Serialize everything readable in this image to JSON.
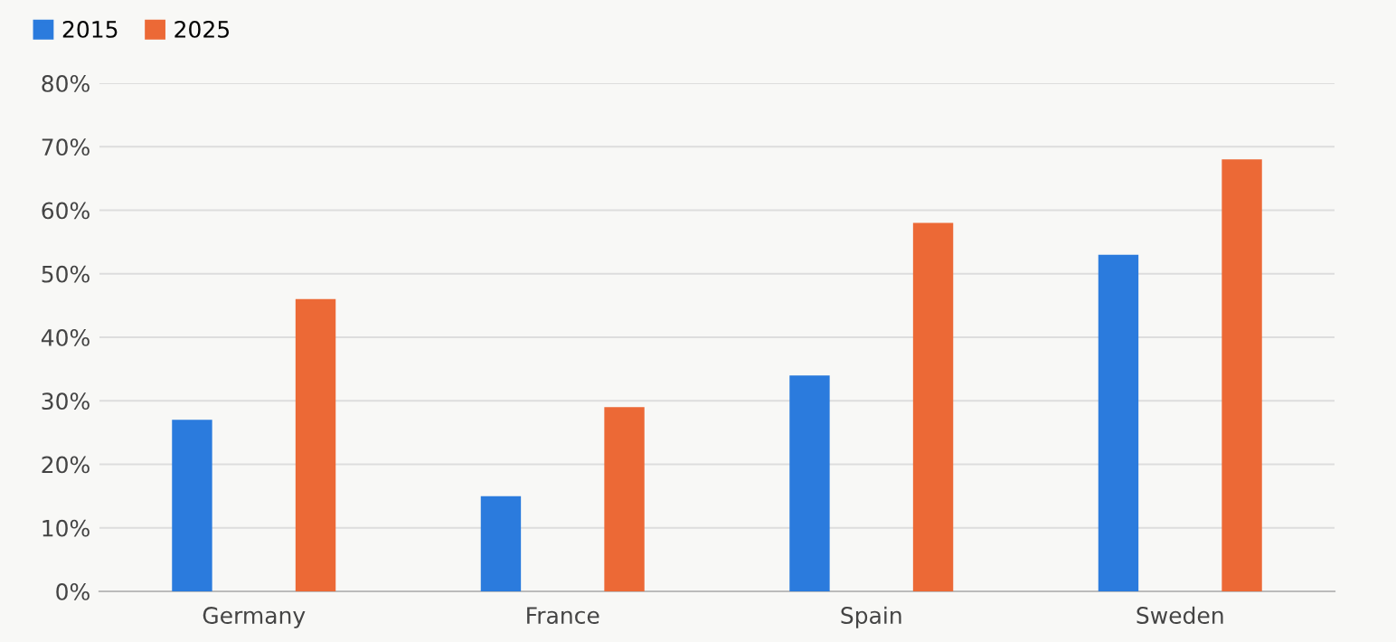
{
  "chart_data": {
    "type": "bar",
    "categories": [
      "Germany",
      "France",
      "Spain",
      "Sweden"
    ],
    "series": [
      {
        "name": "2015",
        "color": "#2b7bdd",
        "values": [
          27,
          15,
          34,
          53
        ]
      },
      {
        "name": "2025",
        "color": "#ec6936",
        "values": [
          46,
          29,
          58,
          68
        ]
      }
    ],
    "ylim": [
      0,
      80
    ],
    "yticks": [
      {
        "value": 0,
        "label": "0%"
      },
      {
        "value": 10,
        "label": "10%"
      },
      {
        "value": 20,
        "label": "20%"
      },
      {
        "value": 30,
        "label": "30%"
      },
      {
        "value": 40,
        "label": "40%"
      },
      {
        "value": 50,
        "label": "50%"
      },
      {
        "value": 60,
        "label": "60%"
      },
      {
        "value": 70,
        "label": "70%"
      },
      {
        "value": 80,
        "label": "80%"
      }
    ],
    "grid": "y",
    "legend": "top left"
  }
}
